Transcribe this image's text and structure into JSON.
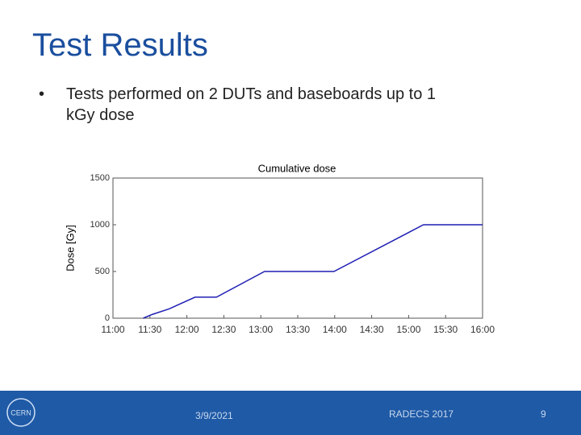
{
  "slide": {
    "title": "Test Results",
    "bullet": "Tests performed on 2 DUTs and baseboards up to 1 kGy dose",
    "footer_date": "3/9/2021",
    "footer_event": "RADECS 2017",
    "page_number": "9",
    "logo": "CERN"
  },
  "chart_data": {
    "type": "line",
    "title": "Cumulative dose",
    "y_label": "Dose [Gy]",
    "x": [
      11.41,
      11.53,
      11.76,
      12.11,
      12.4,
      13.05,
      13.99,
      15.2,
      16.0
    ],
    "series": [
      {
        "color": "#1f1fb4",
        "values": [
          0,
          40,
          100,
          225,
          225,
          500,
          500,
          1000,
          1000
        ]
      }
    ],
    "xlim": [
      11,
      16
    ],
    "ylim": [
      0,
      1500
    ],
    "xticks": [
      {
        "value": 11,
        "label": "11:00"
      },
      {
        "value": 11.5,
        "label": "11:30"
      },
      {
        "value": 12,
        "label": "12:00"
      },
      {
        "value": 12.5,
        "label": "12:30"
      },
      {
        "value": 13,
        "label": "13:00"
      },
      {
        "value": 13.5,
        "label": "13:30"
      },
      {
        "value": 14,
        "label": "14:00"
      },
      {
        "value": 14.5,
        "label": "14:30"
      },
      {
        "value": 15,
        "label": "15:00"
      },
      {
        "value": 15.5,
        "label": "15:30"
      },
      {
        "value": 16,
        "label": "16:00"
      }
    ],
    "yticks": [
      0,
      500,
      1000,
      1500
    ]
  }
}
